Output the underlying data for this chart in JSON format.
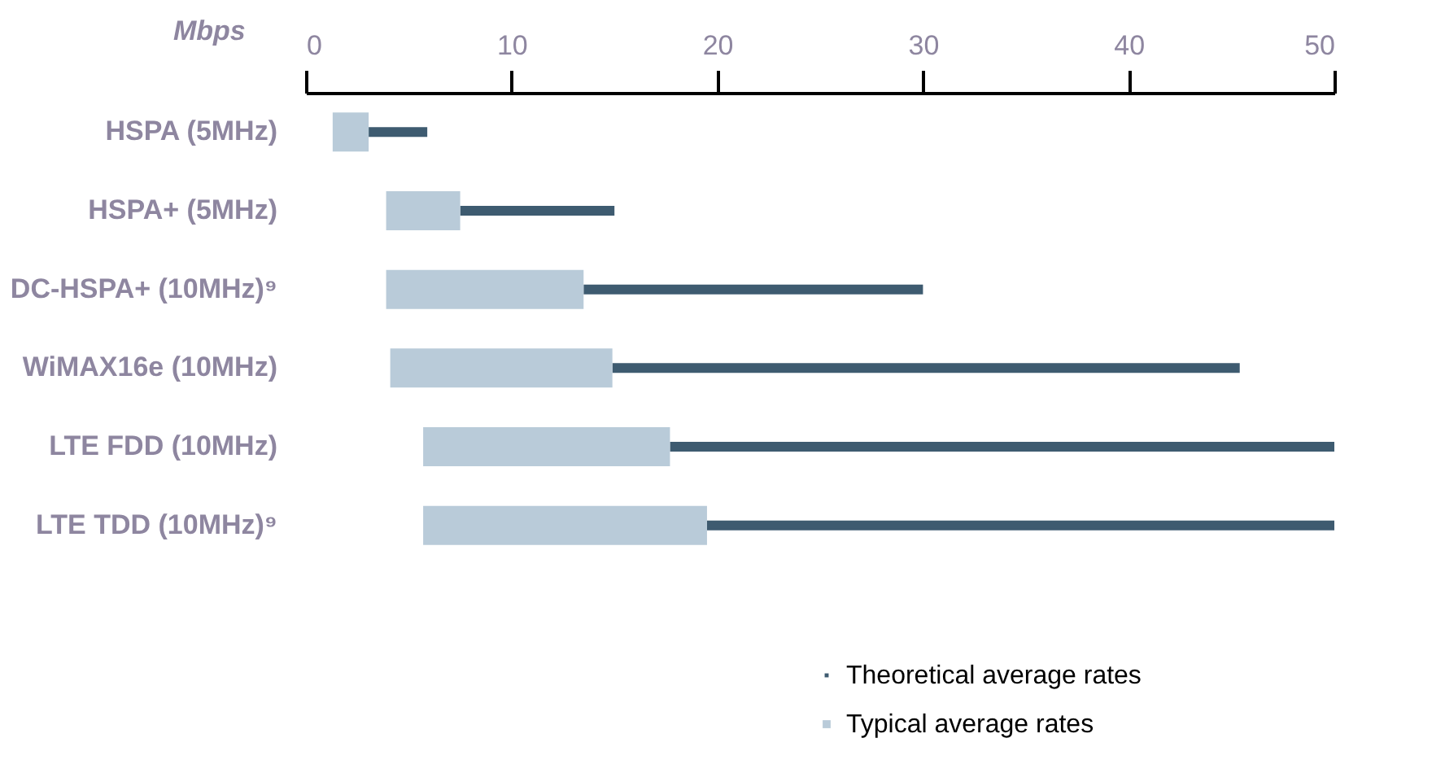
{
  "chart_data": {
    "type": "bar",
    "orientation": "horizontal",
    "xlabel": "Mbps",
    "categories": [
      "HSPA (5MHz)",
      "HSPA+ (5MHz)",
      "DC-HSPA+ (10MHz)⁹",
      "WiMAX16e (10MHz)",
      "LTE FDD (10MHz)",
      "LTE TDD (10MHz)⁹"
    ],
    "series": [
      {
        "name": "Theoretical average rates",
        "color": "#3e5b70",
        "base": [
          3.05,
          7.5,
          13.5,
          14.9,
          17.7,
          19.5
        ],
        "values": [
          2.85,
          7.5,
          16.5,
          30.5,
          32.3,
          30.5
        ]
      },
      {
        "name": "Typical average rates",
        "color": "#b9cbd9",
        "base": [
          1.3,
          3.9,
          3.9,
          4.1,
          5.7,
          5.7
        ],
        "values": [
          1.75,
          3.6,
          9.6,
          10.8,
          12.0,
          13.8
        ]
      }
    ],
    "xlim": [
      0,
      50
    ],
    "xticks": [
      0,
      10,
      20,
      30,
      40,
      50
    ],
    "grid": false,
    "legend": "bottom right"
  }
}
